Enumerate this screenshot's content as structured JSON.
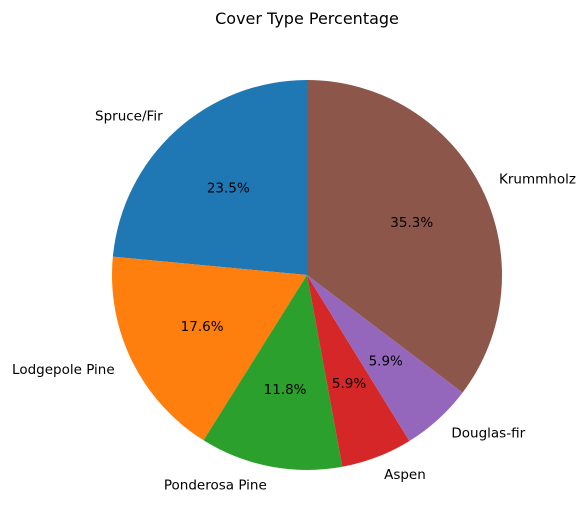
{
  "chart_data": {
    "type": "pie",
    "title": "Cover Type Percentage",
    "categories": [
      "Spruce/Fir",
      "Lodgepole Pine",
      "Ponderosa Pine",
      "Aspen",
      "Douglas-fir",
      "Krummholz"
    ],
    "values": [
      23.5,
      17.6,
      11.8,
      5.9,
      5.9,
      35.3
    ],
    "percent_labels": [
      "23.5%",
      "17.6%",
      "11.8%",
      "5.9%",
      "5.9%",
      "35.3%"
    ],
    "colors": [
      "#1f77b4",
      "#ff7f0e",
      "#2ca02c",
      "#d62728",
      "#9467bd",
      "#8c564b"
    ],
    "start_angle_deg": 90,
    "direction": "counterclockwise",
    "legend": "none"
  }
}
